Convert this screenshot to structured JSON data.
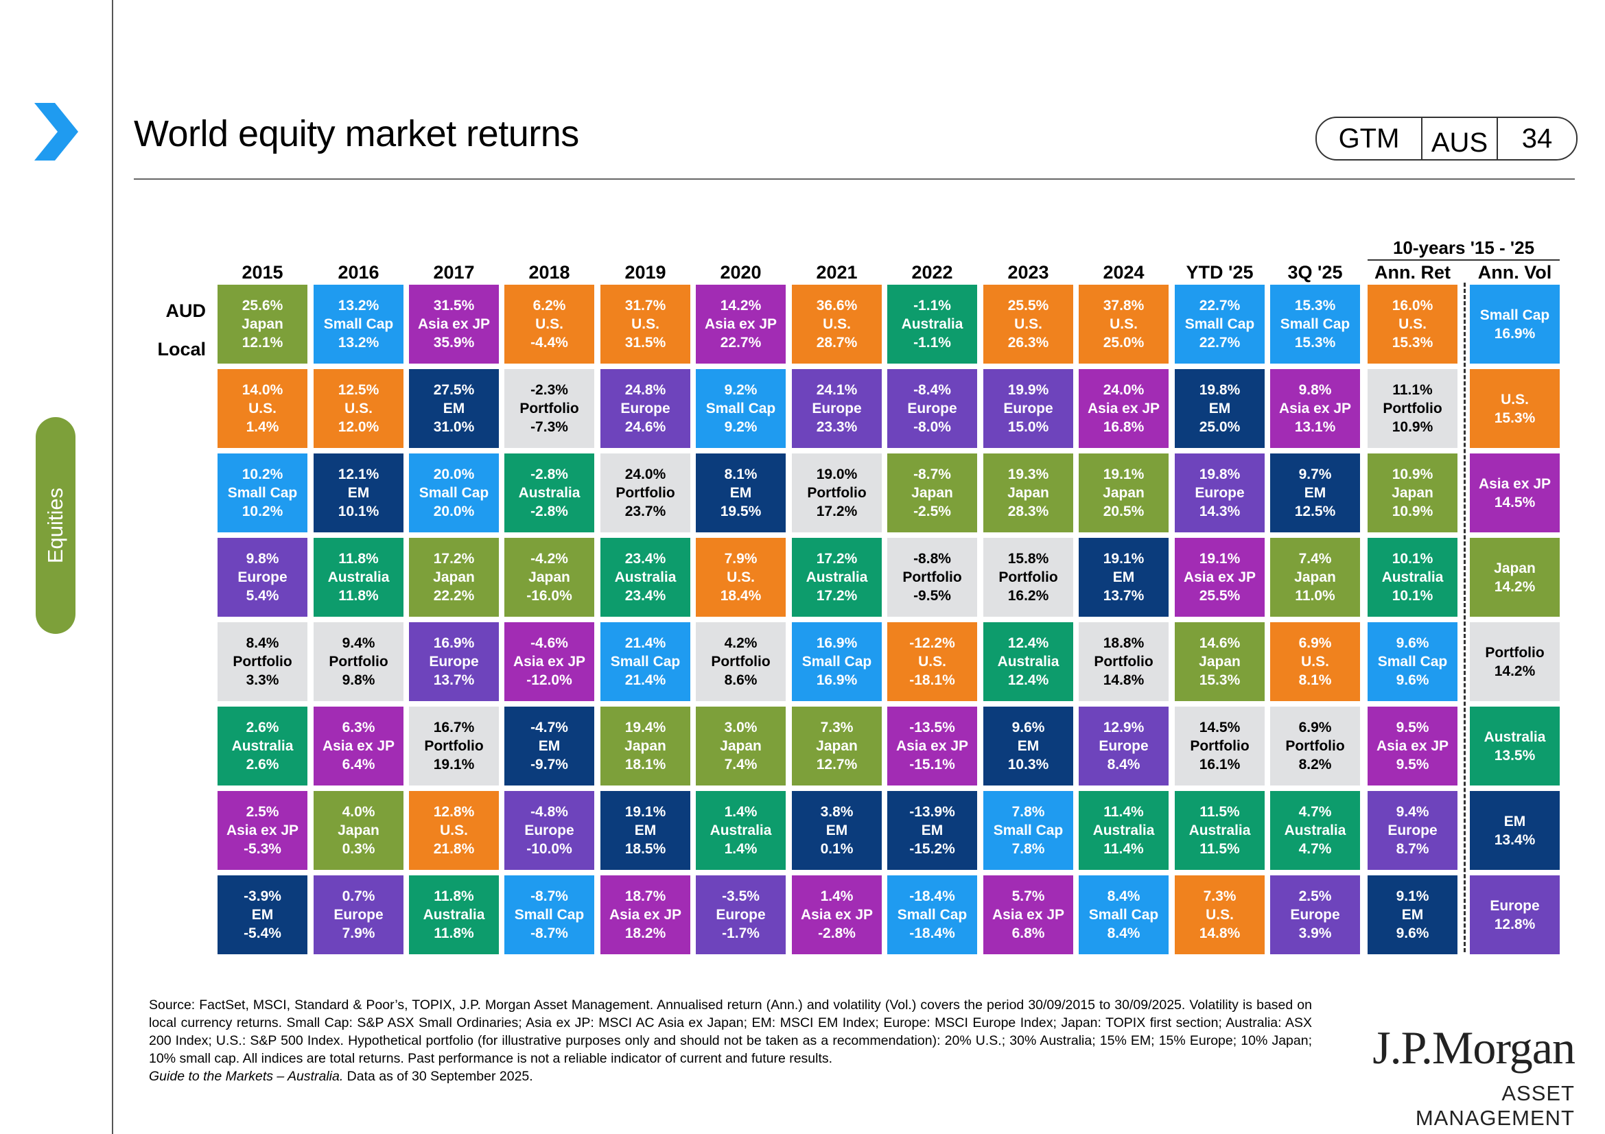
{
  "header": {
    "title": "World equity market returns",
    "badge": [
      "GTM",
      "AUS",
      "34"
    ],
    "side_tab": "Equities"
  },
  "row_labels": {
    "aud": "AUD",
    "local": "Local"
  },
  "ten_year_label": "10-years '15 - '25",
  "colors": {
    "Japan": "#7da03a",
    "U.S.": "#f0821e",
    "Small Cap": "#1f9bf0",
    "Asia ex JP": "#a22cb4",
    "EM": "#0b3c7c",
    "Europe": "#6e44bc",
    "Australia": "#0d9c6c",
    "Portfolio": "#e0e1e3"
  },
  "chart_data": {
    "type": "table",
    "columns": [
      "2015",
      "2016",
      "2017",
      "2018",
      "2019",
      "2020",
      "2021",
      "2022",
      "2023",
      "2024",
      "YTD '25",
      "3Q '25",
      "Ann. Ret",
      "Ann. Vol"
    ],
    "cells": [
      [
        [
          "25.6%",
          "Japan",
          "12.1%"
        ],
        [
          "14.0%",
          "U.S.",
          "1.4%"
        ],
        [
          "10.2%",
          "Small Cap",
          "10.2%"
        ],
        [
          "9.8%",
          "Europe",
          "5.4%"
        ],
        [
          "8.4%",
          "Portfolio",
          "3.3%"
        ],
        [
          "2.6%",
          "Australia",
          "2.6%"
        ],
        [
          "2.5%",
          "Asia ex JP",
          "-5.3%"
        ],
        [
          "-3.9%",
          "EM",
          "-5.4%"
        ]
      ],
      [
        [
          "13.2%",
          "Small Cap",
          "13.2%"
        ],
        [
          "12.5%",
          "U.S.",
          "12.0%"
        ],
        [
          "12.1%",
          "EM",
          "10.1%"
        ],
        [
          "11.8%",
          "Australia",
          "11.8%"
        ],
        [
          "9.4%",
          "Portfolio",
          "9.8%"
        ],
        [
          "6.3%",
          "Asia ex JP",
          "6.4%"
        ],
        [
          "4.0%",
          "Japan",
          "0.3%"
        ],
        [
          "0.7%",
          "Europe",
          "7.9%"
        ]
      ],
      [
        [
          "31.5%",
          "Asia ex JP",
          "35.9%"
        ],
        [
          "27.5%",
          "EM",
          "31.0%"
        ],
        [
          "20.0%",
          "Small Cap",
          "20.0%"
        ],
        [
          "17.2%",
          "Japan",
          "22.2%"
        ],
        [
          "16.9%",
          "Europe",
          "13.7%"
        ],
        [
          "16.7%",
          "Portfolio",
          "19.1%"
        ],
        [
          "12.8%",
          "U.S.",
          "21.8%"
        ],
        [
          "11.8%",
          "Australia",
          "11.8%"
        ]
      ],
      [
        [
          "6.2%",
          "U.S.",
          "-4.4%"
        ],
        [
          "-2.3%",
          "Portfolio",
          "-7.3%"
        ],
        [
          "-2.8%",
          "Australia",
          "-2.8%"
        ],
        [
          "-4.2%",
          "Japan",
          "-16.0%"
        ],
        [
          "-4.6%",
          "Asia ex JP",
          "-12.0%"
        ],
        [
          "-4.7%",
          "EM",
          "-9.7%"
        ],
        [
          "-4.8%",
          "Europe",
          "-10.0%"
        ],
        [
          "-8.7%",
          "Small Cap",
          "-8.7%"
        ]
      ],
      [
        [
          "31.7%",
          "U.S.",
          "31.5%"
        ],
        [
          "24.8%",
          "Europe",
          "24.6%"
        ],
        [
          "24.0%",
          "Portfolio",
          "23.7%"
        ],
        [
          "23.4%",
          "Australia",
          "23.4%"
        ],
        [
          "21.4%",
          "Small Cap",
          "21.4%"
        ],
        [
          "19.4%",
          "Japan",
          "18.1%"
        ],
        [
          "19.1%",
          "EM",
          "18.5%"
        ],
        [
          "18.7%",
          "Asia ex JP",
          "18.2%"
        ]
      ],
      [
        [
          "14.2%",
          "Asia ex JP",
          "22.7%"
        ],
        [
          "9.2%",
          "Small Cap",
          "9.2%"
        ],
        [
          "8.1%",
          "EM",
          "19.5%"
        ],
        [
          "7.9%",
          "U.S.",
          "18.4%"
        ],
        [
          "4.2%",
          "Portfolio",
          "8.6%"
        ],
        [
          "3.0%",
          "Japan",
          "7.4%"
        ],
        [
          "1.4%",
          "Australia",
          "1.4%"
        ],
        [
          "-3.5%",
          "Europe",
          "-1.7%"
        ]
      ],
      [
        [
          "36.6%",
          "U.S.",
          "28.7%"
        ],
        [
          "24.1%",
          "Europe",
          "23.3%"
        ],
        [
          "19.0%",
          "Portfolio",
          "17.2%"
        ],
        [
          "17.2%",
          "Australia",
          "17.2%"
        ],
        [
          "16.9%",
          "Small Cap",
          "16.9%"
        ],
        [
          "7.3%",
          "Japan",
          "12.7%"
        ],
        [
          "3.8%",
          "EM",
          "0.1%"
        ],
        [
          "1.4%",
          "Asia ex JP",
          "-2.8%"
        ]
      ],
      [
        [
          "-1.1%",
          "Australia",
          "-1.1%"
        ],
        [
          "-8.4%",
          "Europe",
          "-8.0%"
        ],
        [
          "-8.7%",
          "Japan",
          "-2.5%"
        ],
        [
          "-8.8%",
          "Portfolio",
          "-9.5%"
        ],
        [
          "-12.2%",
          "U.S.",
          "-18.1%"
        ],
        [
          "-13.5%",
          "Asia ex JP",
          "-15.1%"
        ],
        [
          "-13.9%",
          "EM",
          "-15.2%"
        ],
        [
          "-18.4%",
          "Small Cap",
          "-18.4%"
        ]
      ],
      [
        [
          "25.5%",
          "U.S.",
          "26.3%"
        ],
        [
          "19.9%",
          "Europe",
          "15.0%"
        ],
        [
          "19.3%",
          "Japan",
          "28.3%"
        ],
        [
          "15.8%",
          "Portfolio",
          "16.2%"
        ],
        [
          "12.4%",
          "Australia",
          "12.4%"
        ],
        [
          "9.6%",
          "EM",
          "10.3%"
        ],
        [
          "7.8%",
          "Small Cap",
          "7.8%"
        ],
        [
          "5.7%",
          "Asia ex JP",
          "6.8%"
        ]
      ],
      [
        [
          "37.8%",
          "U.S.",
          "25.0%"
        ],
        [
          "24.0%",
          "Asia ex JP",
          "16.8%"
        ],
        [
          "19.1%",
          "Japan",
          "20.5%"
        ],
        [
          "19.1%",
          "EM",
          "13.7%"
        ],
        [
          "18.8%",
          "Portfolio",
          "14.8%"
        ],
        [
          "12.9%",
          "Europe",
          "8.4%"
        ],
        [
          "11.4%",
          "Australia",
          "11.4%"
        ],
        [
          "8.4%",
          "Small Cap",
          "8.4%"
        ]
      ],
      [
        [
          "22.7%",
          "Small Cap",
          "22.7%"
        ],
        [
          "19.8%",
          "EM",
          "25.0%"
        ],
        [
          "19.8%",
          "Europe",
          "14.3%"
        ],
        [
          "19.1%",
          "Asia ex JP",
          "25.5%"
        ],
        [
          "14.6%",
          "Japan",
          "15.3%"
        ],
        [
          "14.5%",
          "Portfolio",
          "16.1%"
        ],
        [
          "11.5%",
          "Australia",
          "11.5%"
        ],
        [
          "7.3%",
          "U.S.",
          "14.8%"
        ]
      ],
      [
        [
          "15.3%",
          "Small Cap",
          "15.3%"
        ],
        [
          "9.8%",
          "Asia ex JP",
          "13.1%"
        ],
        [
          "9.7%",
          "EM",
          "12.5%"
        ],
        [
          "7.4%",
          "Japan",
          "11.0%"
        ],
        [
          "6.9%",
          "U.S.",
          "8.1%"
        ],
        [
          "6.9%",
          "Portfolio",
          "8.2%"
        ],
        [
          "4.7%",
          "Australia",
          "4.7%"
        ],
        [
          "2.5%",
          "Europe",
          "3.9%"
        ]
      ],
      [
        [
          "16.0%",
          "U.S.",
          "15.3%"
        ],
        [
          "11.1%",
          "Portfolio",
          "10.9%"
        ],
        [
          "10.9%",
          "Japan",
          "10.9%"
        ],
        [
          "10.1%",
          "Australia",
          "10.1%"
        ],
        [
          "9.6%",
          "Small Cap",
          "9.6%"
        ],
        [
          "9.5%",
          "Asia ex JP",
          "9.5%"
        ],
        [
          "9.4%",
          "Europe",
          "8.7%"
        ],
        [
          "9.1%",
          "EM",
          "9.6%"
        ]
      ],
      [
        [
          "Small Cap",
          "16.9%"
        ],
        [
          "U.S.",
          "15.3%"
        ],
        [
          "Asia ex JP",
          "14.5%"
        ],
        [
          "Japan",
          "14.2%"
        ],
        [
          "Portfolio",
          "14.2%"
        ],
        [
          "Australia",
          "13.5%"
        ],
        [
          "EM",
          "13.4%"
        ],
        [
          "Europe",
          "12.8%"
        ]
      ]
    ]
  },
  "footnote": {
    "source": "Source: FactSet, MSCI, Standard & Poor’s, TOPIX, J.P. Morgan Asset Management. Annualised return (Ann.) and volatility (Vol.) covers the period 30/09/2015 to 30/09/2025. Volatility is based on local currency returns. Small Cap: S&P ASX Small Ordinaries; Asia ex JP: MSCI AC Asia ex Japan; EM: MSCI EM Index; Europe: MSCI Europe Index; Japan: TOPIX first section; Australia: ASX 200 Index; U.S.: S&P 500 Index. Hypothetical portfolio (for illustrative purposes only and should not be taken as a recommendation): 20% U.S.; 30% Australia; 15% EM; 15% Europe; 10% Japan; 10% small cap. All indices are total returns. Past performance is not a reliable indicator of current and future results.",
    "guide_italic": "Guide to the Markets – Australia.",
    "guide_rest": " Data as of 30 September 2025."
  },
  "logo": {
    "line1": "J.P.Morgan",
    "line2": "ASSET MANAGEMENT"
  }
}
